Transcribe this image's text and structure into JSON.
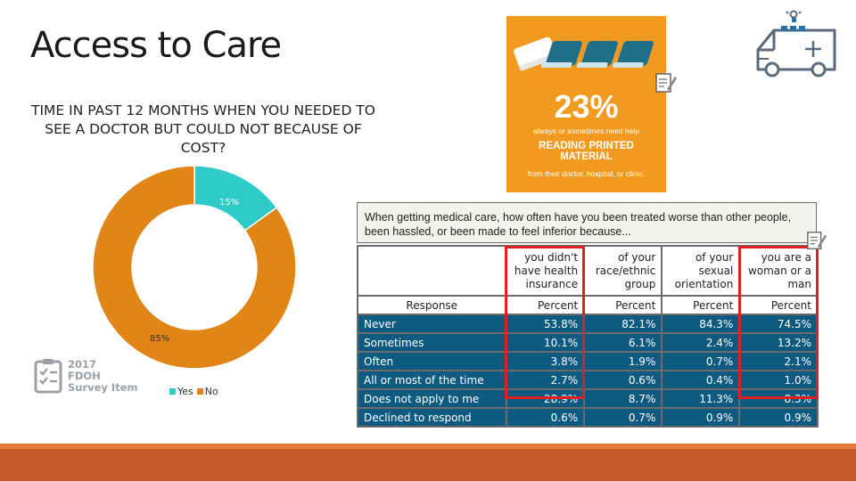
{
  "slide": {
    "title": "Access to Care"
  },
  "donut_chart": {
    "title": "TIME IN PAST 12 MONTHS WHEN YOU NEEDED TO SEE A DOCTOR BUT COULD NOT BECAUSE OF COST?",
    "legend": [
      {
        "label": "Yes",
        "color": "#2ecbc7"
      },
      {
        "label": "No",
        "color": "#e18516"
      }
    ]
  },
  "chart_data": {
    "type": "pie",
    "title": "TIME IN PAST 12 MONTHS WHEN YOU NEEDED TO SEE A DOCTOR BUT COULD NOT BECAUSE OF COST?",
    "categories": [
      "Yes",
      "No"
    ],
    "values": [
      15,
      85
    ],
    "labels": [
      "15%",
      "85%"
    ],
    "colors": [
      "#2ecbc7",
      "#e18516"
    ],
    "donut": true,
    "legend": "bottom"
  },
  "survey_badge": {
    "line1": "2017",
    "line2": "FDOH",
    "line3": "Survey Item"
  },
  "stat_card": {
    "value": "23%",
    "line1": "always or sometimes need help",
    "heading_line1": "READING PRINTED",
    "heading_line2": "MATERIAL",
    "line2": "from their doctor, hospital, or clinic."
  },
  "table": {
    "question": "When getting medical care, how often have you been treated worse than other people, been hassled, or been made to feel inferior because...",
    "columns": [
      {
        "line1": "you didn't",
        "line2": "have health",
        "line3": "insurance"
      },
      {
        "line1": "of your",
        "line2": "race/ethnic",
        "line3": "group"
      },
      {
        "line1": "of your",
        "line2": "sexual",
        "line3": "orientation"
      },
      {
        "line1": "you are a",
        "line2": "woman or a",
        "line3": "man"
      }
    ],
    "response_header": "Response",
    "percent_header": "Percent",
    "rows": [
      {
        "label": "Never",
        "values": [
          "53.8%",
          "82.1%",
          "84.3%",
          "74.5%"
        ]
      },
      {
        "label": "Sometimes",
        "values": [
          "10.1%",
          "6.1%",
          "2.4%",
          "13.2%"
        ]
      },
      {
        "label": "Often",
        "values": [
          "3.8%",
          "1.9%",
          "0.7%",
          "2.1%"
        ]
      },
      {
        "label": "All or most of the time",
        "values": [
          "2.7%",
          "0.6%",
          "0.4%",
          "1.0%"
        ]
      },
      {
        "label": "Does not apply to me",
        "values": [
          "28.9%",
          "8.7%",
          "11.3%",
          "8.3%"
        ]
      },
      {
        "label": "Declined to respond",
        "values": [
          "0.6%",
          "0.7%",
          "0.9%",
          "0.9%"
        ]
      }
    ]
  },
  "icons": [
    "ambulance-icon",
    "book-icon",
    "notepad-icon",
    "checklist-icon"
  ],
  "colors": {
    "accent": "#f29a1f",
    "table_fill": "#0e5a80",
    "highlight": "#e02020",
    "bottom_bar": "#c55a2a"
  }
}
